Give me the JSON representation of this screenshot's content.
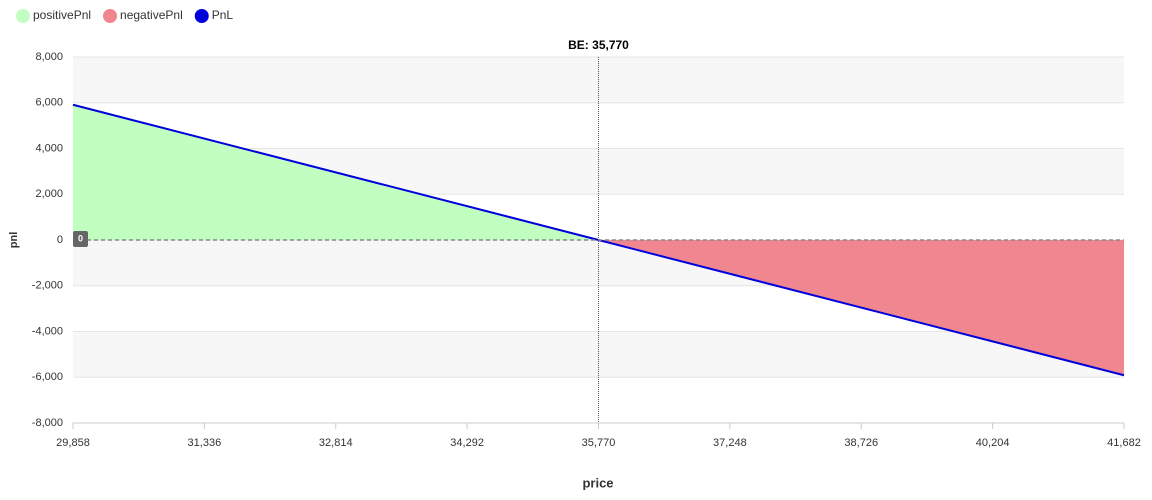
{
  "chart_data": {
    "type": "area",
    "xlabel": "price",
    "ylabel": "pnl",
    "x": [
      29858,
      35770,
      41682
    ],
    "series": [
      {
        "name": "positivePnl",
        "color": "#c1ffc1",
        "kind": "area",
        "values": [
          5912,
          0,
          0
        ]
      },
      {
        "name": "negativePnl",
        "color": "#f0868f",
        "kind": "area",
        "values": [
          0,
          0,
          -5912
        ]
      },
      {
        "name": "PnL",
        "color": "#0000dd",
        "kind": "line",
        "values": [
          5912,
          0,
          -5912
        ]
      }
    ],
    "xlim": [
      29858,
      41682
    ],
    "xticks": [
      {
        "value": 29858,
        "label": "29,858"
      },
      {
        "value": 31336,
        "label": "31,336"
      },
      {
        "value": 32814,
        "label": "32,814"
      },
      {
        "value": 34292,
        "label": "34,292"
      },
      {
        "value": 35770,
        "label": "35,770"
      },
      {
        "value": 37248,
        "label": "37,248"
      },
      {
        "value": 38726,
        "label": "38,726"
      },
      {
        "value": 40204,
        "label": "40,204"
      },
      {
        "value": 41682,
        "label": "41,682"
      }
    ],
    "ylim": [
      -8000,
      8000
    ],
    "yticks": [
      {
        "value": -8000,
        "label": "-8,000"
      },
      {
        "value": -6000,
        "label": "-6,000"
      },
      {
        "value": -4000,
        "label": "-4,000"
      },
      {
        "value": -2000,
        "label": "-2,000"
      },
      0,
      {
        "value": 2000,
        "label": "2,000"
      },
      {
        "value": 4000,
        "label": "4,000"
      },
      {
        "value": 6000,
        "label": "6,000"
      },
      {
        "value": 8000,
        "label": "8,000"
      }
    ],
    "grid": true,
    "legend": "top-left",
    "annotations": [
      {
        "x": 35770,
        "label": "BE: 35,770"
      },
      {
        "y": 0,
        "label": "0"
      }
    ]
  }
}
